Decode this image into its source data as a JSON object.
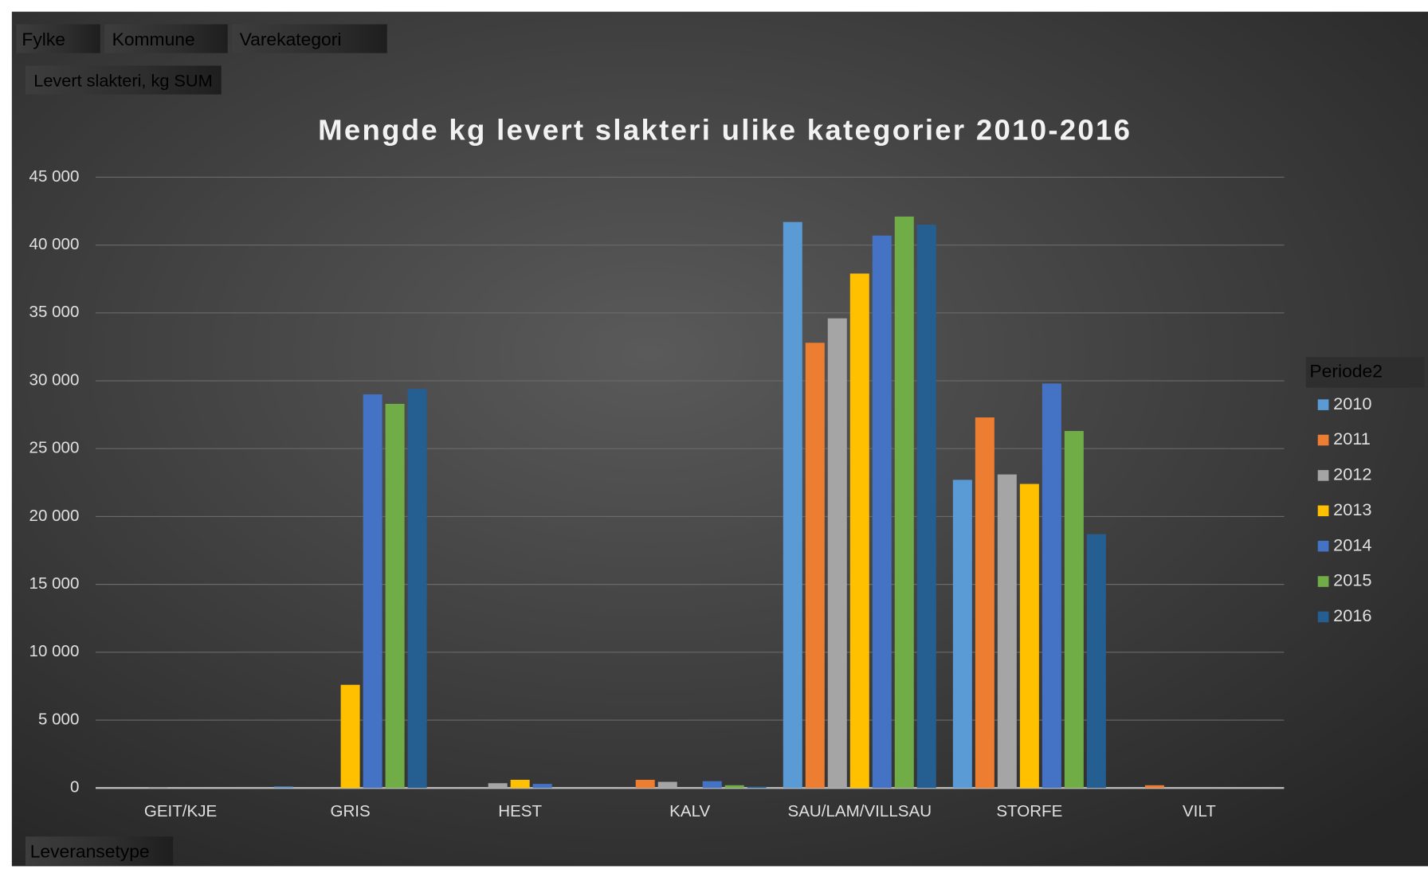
{
  "filter_buttons": [
    "Fylke",
    "Kommune",
    "Varekategori"
  ],
  "value_button": "Levert slakteri, kg SUM",
  "axis_button": "Leveransetype",
  "chart_data": {
    "type": "bar",
    "title": "Mengde kg levert slakteri ulike kategorier  2010-2016",
    "legend_title": "Periode2",
    "legend": "right",
    "grid": true,
    "categories": [
      "GEIT/KJE",
      "GRIS",
      "HEST",
      "KALV",
      "SAU/LAM/VILLSAU",
      "STORFE",
      "VILT"
    ],
    "ylim": [
      0,
      45000
    ],
    "yticks": [
      0,
      {
        "value": 5000,
        "label": "5 000"
      },
      {
        "value": 10000,
        "label": "10 000"
      },
      {
        "value": 15000,
        "label": "15 000"
      },
      {
        "value": 20000,
        "label": "20 000"
      },
      {
        "value": 25000,
        "label": "25 000"
      },
      {
        "value": 30000,
        "label": "30 000"
      },
      {
        "value": 35000,
        "label": "35 000"
      },
      {
        "value": 40000,
        "label": "40 000"
      },
      {
        "value": 45000,
        "label": "45 000"
      }
    ],
    "series": [
      {
        "name": "2010",
        "color": "#5b9bd5",
        "values": [
          null,
          100,
          null,
          null,
          41700,
          22700,
          null
        ]
      },
      {
        "name": "2011",
        "color": "#ed7d31",
        "values": [
          null,
          null,
          null,
          600,
          32800,
          27300,
          200
        ]
      },
      {
        "name": "2012",
        "color": "#a5a5a5",
        "values": [
          50,
          null,
          350,
          450,
          34600,
          23100,
          null
        ]
      },
      {
        "name": "2013",
        "color": "#ffc000",
        "values": [
          null,
          7600,
          600,
          null,
          37900,
          22400,
          null
        ]
      },
      {
        "name": "2014",
        "color": "#4472c4",
        "values": [
          null,
          29000,
          300,
          500,
          40700,
          29800,
          null
        ]
      },
      {
        "name": "2015",
        "color": "#70ad47",
        "values": [
          null,
          28300,
          null,
          200,
          42100,
          26300,
          null
        ]
      },
      {
        "name": "2016",
        "color": "#255e91",
        "values": [
          null,
          29400,
          null,
          100,
          41500,
          18700,
          null
        ]
      }
    ]
  }
}
